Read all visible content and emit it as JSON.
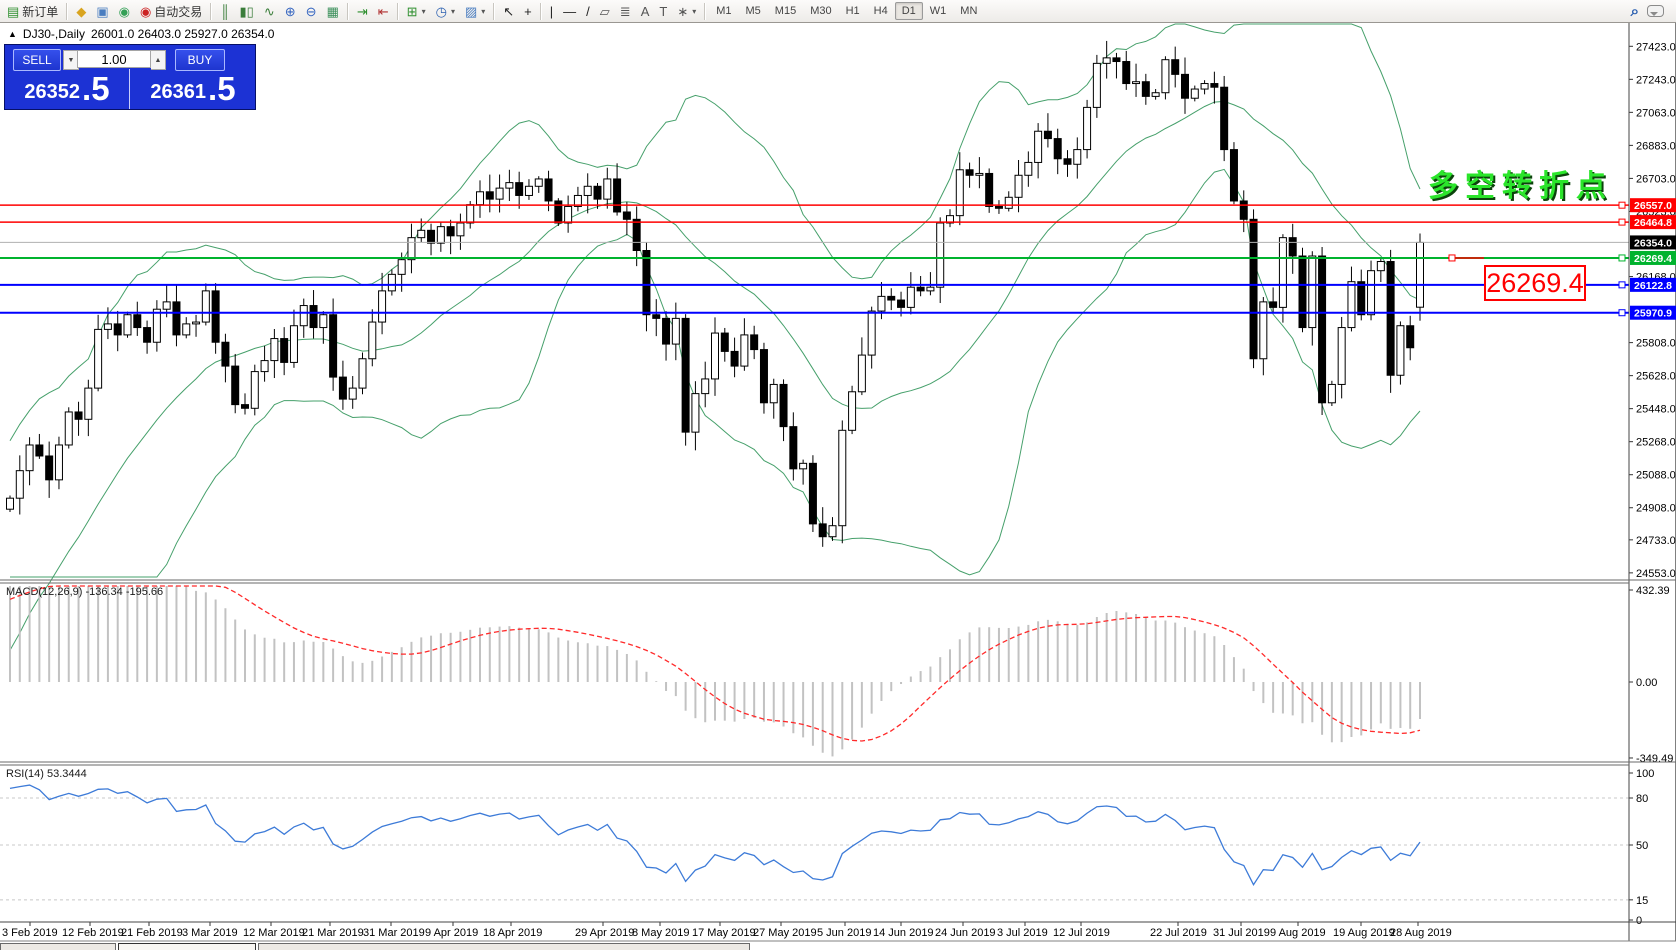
{
  "toolbar": {
    "buttons": [
      {
        "name": "new-order-button",
        "glyph": "▤",
        "color": "#2e8f2e",
        "label": "新订单"
      },
      {
        "sep": true
      },
      {
        "name": "market-watch-button",
        "glyph": "◆",
        "color": "#d9a41f"
      },
      {
        "name": "data-window-button",
        "glyph": "▣",
        "color": "#4a7dc0"
      },
      {
        "name": "signals-button",
        "glyph": "◉",
        "color": "#33a055"
      },
      {
        "name": "autotrading-button",
        "glyph": "◉",
        "color": "#cc2222",
        "label": "自动交易"
      },
      {
        "sep": true
      },
      {
        "name": "bar-chart-button",
        "glyph": "║",
        "color": "#3a7d3a"
      },
      {
        "name": "candlestick-chart-button",
        "glyph": "▮▯",
        "color": "#3a7d3a"
      },
      {
        "name": "line-chart-button",
        "glyph": "∿",
        "color": "#3a7d3a"
      },
      {
        "name": "zoom-in-button",
        "glyph": "⊕",
        "color": "#3565c0"
      },
      {
        "name": "zoom-out-button",
        "glyph": "⊖",
        "color": "#3565c0"
      },
      {
        "name": "tile-windows-button",
        "glyph": "▦",
        "color": "#3a8f5a"
      },
      {
        "sep": true
      },
      {
        "name": "auto-scroll-button",
        "glyph": "⇥",
        "color": "#2e8f2e"
      },
      {
        "name": "chart-shift-button",
        "glyph": "⇤",
        "color": "#b03030"
      },
      {
        "sep": true
      },
      {
        "name": "indicators-button",
        "glyph": "⊞",
        "color": "#2e8f2e",
        "dropdown": true
      },
      {
        "name": "periods-button",
        "glyph": "◷",
        "color": "#2a5fb0",
        "dropdown": true
      },
      {
        "name": "templates-button",
        "glyph": "▨",
        "color": "#4a7dc0",
        "dropdown": true
      },
      {
        "sep": true
      },
      {
        "name": "cursor-button",
        "glyph": "↖",
        "color": "#222"
      },
      {
        "name": "crosshair-button",
        "glyph": "+",
        "color": "#222"
      },
      {
        "sep": true
      },
      {
        "name": "vertical-line-button",
        "glyph": "|",
        "color": "#222"
      },
      {
        "name": "horizontal-line-button",
        "glyph": "—",
        "color": "#222"
      },
      {
        "name": "trendline-button",
        "glyph": "/",
        "color": "#222"
      },
      {
        "name": "equidistant-channel-button",
        "glyph": "▱",
        "color": "#555"
      },
      {
        "name": "fibonacci-button",
        "glyph": "≣",
        "color": "#555"
      },
      {
        "name": "text-button",
        "glyph": "A",
        "color": "#555"
      },
      {
        "name": "text-label-button",
        "glyph": "T",
        "color": "#555"
      },
      {
        "name": "arrows-button",
        "glyph": "∗",
        "color": "#555",
        "dropdown": true
      },
      {
        "sep": true
      }
    ],
    "timeframes": [
      "M1",
      "M5",
      "M15",
      "M30",
      "H1",
      "H4",
      "D1",
      "W1",
      "MN"
    ],
    "active_timeframe": "D1"
  },
  "chart": {
    "title": "DJ30-,Daily",
    "ohlc_text": "26001.0 26403.0 25927.0 26354.0"
  },
  "trade_panel": {
    "sell_label": "SELL",
    "buy_label": "BUY",
    "volume": "1.00",
    "sell_price_main": "26352",
    "sell_price_pip": ".5",
    "buy_price_main": "26361",
    "buy_price_pip": ".5"
  },
  "annotation": {
    "text": "多空转折点",
    "color": "#2be52b"
  },
  "callout": {
    "text": "26269.4",
    "color": "#ff0000"
  },
  "chart_data": {
    "type": "candlestick",
    "symbol": "DJ30-",
    "period": "Daily",
    "ohlc": {
      "open": 26001.0,
      "high": 26403.0,
      "low": 25927.0,
      "close": 26354.0
    },
    "closes": [
      24960,
      25110,
      25250,
      25190,
      25060,
      25250,
      25430,
      25390,
      25560,
      25880,
      25910,
      25850,
      25960,
      25890,
      25810,
      25990,
      26030,
      25850,
      25910,
      25920,
      26090,
      25810,
      25680,
      25470,
      25450,
      25650,
      25710,
      25830,
      25700,
      25900,
      26010,
      25890,
      25960,
      25620,
      25500,
      25560,
      25720,
      25920,
      26090,
      26180,
      26260,
      26380,
      26420,
      26350,
      26440,
      26390,
      26460,
      26560,
      26630,
      26590,
      26650,
      26680,
      26610,
      26660,
      26700,
      26580,
      26460,
      26550,
      26610,
      26660,
      26590,
      26700,
      26520,
      26480,
      26310,
      25960,
      25940,
      25800,
      25940,
      25320,
      25530,
      25610,
      25860,
      25760,
      25680,
      25850,
      25770,
      25480,
      25580,
      25350,
      25120,
      25150,
      24820,
      24750,
      24810,
      25330,
      25540,
      25740,
      25980,
      26060,
      26040,
      26000,
      26110,
      26090,
      26110,
      26460,
      26500,
      26750,
      26720,
      26730,
      26550,
      26540,
      26600,
      26720,
      26790,
      26960,
      26920,
      26810,
      26780,
      26860,
      27090,
      27330,
      27360,
      27340,
      27220,
      27230,
      27150,
      27170,
      27350,
      27270,
      27140,
      27190,
      27220,
      27200,
      26860,
      26580,
      26480,
      25720,
      26030,
      26000,
      26380,
      26280,
      25890,
      26280,
      25480,
      25580,
      25890,
      26140,
      25960,
      26200,
      26250,
      25630,
      25900,
      25780,
      26354
    ],
    "warmup_closes": [
      23050,
      23220,
      23150,
      23400,
      23560,
      23480,
      23700,
      23850,
      23800,
      24050,
      24200,
      24150,
      24350,
      24500,
      24420,
      24600,
      24750,
      24700,
      24850,
      24940
    ],
    "price_axis_ticks": [
      "27423.0",
      "27243.0",
      "27063.0",
      "26883.0",
      "26703.0",
      "26523.0",
      "26168.0",
      "25808.0",
      "25628.0",
      "25448.0",
      "25268.0",
      "25088.0",
      "24908.0",
      "24733.0",
      "24553.0"
    ],
    "current_price_tag": {
      "label": "26354.0",
      "price": 26354.0,
      "bg": "#000000",
      "line_color": "#b0b0b0"
    },
    "levels": [
      {
        "label": "26557.0",
        "price": 26557.0,
        "color": "#ff0000",
        "width": 1.5
      },
      {
        "label": "26464.8",
        "price": 26464.8,
        "color": "#ff0000",
        "width": 1.5
      },
      {
        "label": "26269.4",
        "price": 26269.4,
        "color": "#00b32e",
        "width": 2
      },
      {
        "label": "26122.8",
        "price": 26122.8,
        "color": "#0000ff",
        "width": 2
      },
      {
        "label": "25970.9",
        "price": 25970.9,
        "color": "#0000ff",
        "width": 2
      }
    ],
    "dates": [
      "3 Feb 2019",
      "12 Feb 2019",
      "21 Feb 2019",
      "3 Mar 2019",
      "12 Mar 2019",
      "21 Mar 2019",
      "31 Mar 2019",
      "9 Apr 2019",
      "18 Apr 2019",
      "29 Apr 2019",
      "8 May 2019",
      "17 May 2019",
      "27 May 2019",
      "5 Jun 2019",
      "14 Jun 2019",
      "24 Jun 2019",
      "3 Jul 2019",
      "12 Jul 2019",
      "22 Jul 2019",
      "31 Jul 2019",
      "9 Aug 2019",
      "19 Aug 2019",
      "28 Aug 2019"
    ],
    "indicators": {
      "bollinger": {
        "period": 20,
        "deviation": 2,
        "color": "#46a06b"
      },
      "macd": {
        "label_text": "MACD(12,26,9) -136.34 -195.66",
        "fast": 12,
        "slow": 26,
        "signal": 9,
        "axis_ticks": [
          {
            "label": "432.39",
            "v": 432.39
          },
          {
            "label": "0.00",
            "v": 0
          },
          {
            "label": "-349.49",
            "v": -349.49
          }
        ],
        "histogram_color": "#c2c2c2",
        "signal_color": "#ff2a2a"
      },
      "rsi": {
        "label_text": "RSI(14) 53.3444",
        "period": 14,
        "value": 53.3444,
        "axis_ticks": [
          {
            "label": "100",
            "v": 100
          },
          {
            "label": "80",
            "v": 80
          },
          {
            "label": "50",
            "v": 50
          },
          {
            "label": "15",
            "v": 15
          },
          {
            "label": "0",
            "v": 0
          }
        ],
        "levels": [
          80,
          50,
          15
        ],
        "color": "#3d7bd8"
      }
    }
  }
}
